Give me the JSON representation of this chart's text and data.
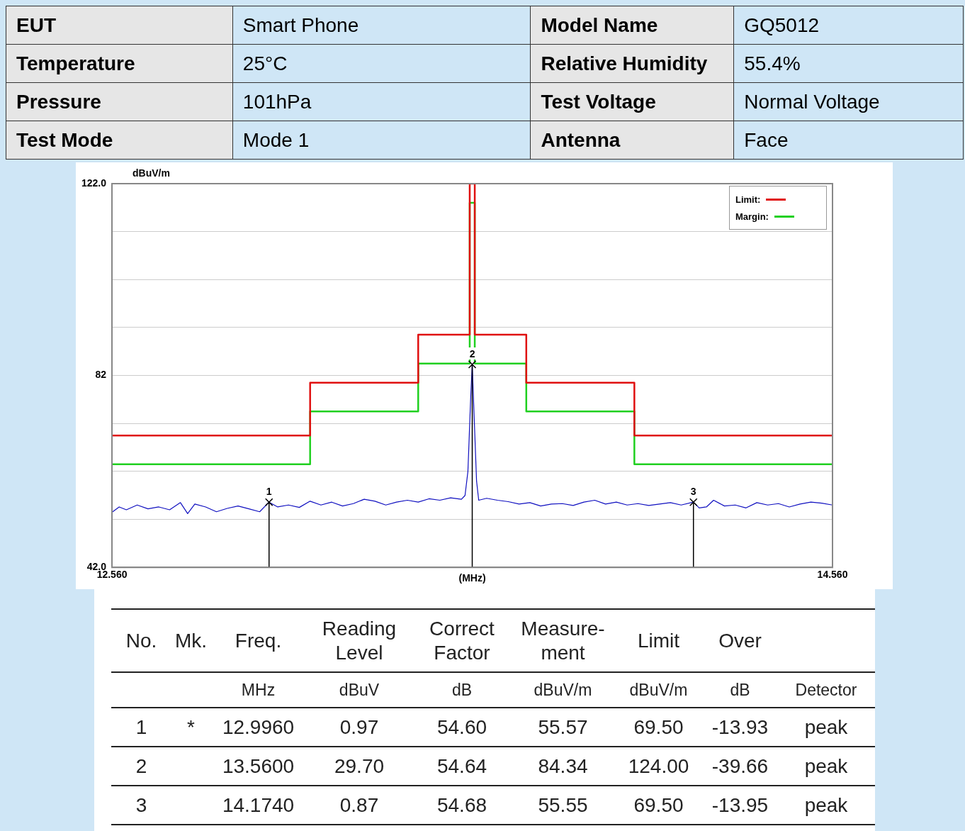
{
  "chart_data": [
    {
      "type": "other",
      "annotations": [
        "EUT",
        "Smart Phone",
        "Model Name",
        "GQ5012",
        "Temperature",
        "25°C",
        "Relative Humidity",
        "55.4%",
        "Pressure",
        "101hPa",
        "Test Voltage",
        "Normal Voltage",
        "Test Mode",
        "Mode 1",
        "Antenna",
        "Face"
      ]
    },
    {
      "type": "line",
      "ylabel": "dBuV/m",
      "xlabel": "(MHz)",
      "xlim": [
        12.56,
        14.56
      ],
      "xticks": [
        {
          "value": 12.56,
          "label": "12.560"
        },
        {
          "value": 14.56,
          "label": "14.560"
        }
      ],
      "ylim": [
        42,
        122
      ],
      "yticks": [
        {
          "value": 42,
          "label": "42.0"
        },
        {
          "value": 52,
          "label": null
        },
        {
          "value": 62,
          "label": null
        },
        {
          "value": 72,
          "label": null
        },
        82,
        {
          "value": 92,
          "label": null
        },
        {
          "value": 102,
          "label": null
        },
        {
          "value": 112,
          "label": null
        },
        {
          "value": 122,
          "label": "122.0"
        }
      ],
      "grid": "y",
      "legend": "top right",
      "marker": "none",
      "line_style": "solid",
      "series": [
        {
          "name": "Limit:",
          "color": "#e01010",
          "x": [
            12.56,
            13.11,
            13.11,
            13.41,
            13.41,
            13.553,
            13.553,
            13.567,
            13.567,
            13.71,
            13.71,
            14.01,
            14.01,
            14.56
          ],
          "values": [
            69.5,
            69.5,
            80.5,
            80.5,
            90.5,
            90.5,
            122,
            122,
            90.5,
            90.5,
            80.5,
            80.5,
            69.5,
            69.5
          ]
        },
        {
          "name": "Margin:",
          "color": "#20d020",
          "x": [
            12.56,
            13.11,
            13.11,
            13.41,
            13.41,
            13.553,
            13.553,
            13.567,
            13.567,
            13.71,
            13.71,
            14.01,
            14.01,
            14.56
          ],
          "values": [
            63.5,
            63.5,
            74.5,
            74.5,
            84.5,
            84.5,
            118,
            118,
            84.5,
            84.5,
            74.5,
            74.5,
            63.5,
            63.5
          ]
        },
        {
          "color": "#1010c0",
          "x": [
            12.56,
            12.58,
            12.6,
            12.63,
            12.66,
            12.69,
            12.72,
            12.75,
            12.77,
            12.79,
            12.82,
            12.85,
            12.88,
            12.91,
            12.94,
            12.97,
            12.996,
            13.02,
            13.05,
            13.08,
            13.11,
            13.14,
            13.17,
            13.2,
            13.23,
            13.26,
            13.29,
            13.32,
            13.35,
            13.38,
            13.41,
            13.44,
            13.47,
            13.5,
            13.53,
            13.54,
            13.548,
            13.552,
            13.556,
            13.56,
            13.564,
            13.568,
            13.572,
            13.578,
            13.6,
            13.63,
            13.66,
            13.69,
            13.72,
            13.75,
            13.78,
            13.81,
            13.84,
            13.87,
            13.9,
            13.93,
            13.96,
            13.99,
            14.02,
            14.05,
            14.08,
            14.11,
            14.14,
            14.174,
            14.19,
            14.21,
            14.23,
            14.26,
            14.29,
            14.32,
            14.35,
            14.38,
            14.41,
            14.44,
            14.47,
            14.5,
            14.53,
            14.56
          ],
          "values": [
            53.5,
            54.6,
            54,
            55,
            54.2,
            54.6,
            54,
            55.5,
            53.2,
            55.2,
            54.6,
            53.6,
            54.3,
            54.8,
            54.2,
            53.6,
            55.6,
            54.6,
            55,
            54.5,
            55.8,
            55,
            55.6,
            54.8,
            55.3,
            56.2,
            55.8,
            55,
            55.6,
            56,
            55.6,
            56.3,
            56,
            56.5,
            56.2,
            57,
            62,
            70,
            78,
            84.3,
            76,
            68,
            60,
            56,
            56.4,
            56,
            55.7,
            55.2,
            55.5,
            54.8,
            55.2,
            55.3,
            54.9,
            55.6,
            56,
            55.2,
            55.6,
            55,
            55.3,
            54.9,
            55.2,
            55.5,
            55,
            55.6,
            54.4,
            54.6,
            56,
            54.8,
            55,
            54.4,
            55.5,
            55,
            55.3,
            54.6,
            55.2,
            55.6,
            55.4,
            55
          ]
        }
      ],
      "annotations": [
        {
          "text": "1",
          "x": 12.996,
          "y": 55.6
        },
        {
          "text": "2",
          "x": 13.56,
          "y": 84.3
        },
        {
          "text": "3",
          "x": 14.174,
          "y": 55.6
        }
      ]
    },
    {
      "type": "other",
      "annotations": [
        "No.",
        "Mk.",
        "Freq.",
        "Reading Level",
        "Correct Factor",
        "Measure- ment",
        "Limit",
        "Over",
        null,
        null,
        null,
        "MHz",
        "dBuV",
        "dB",
        "dBuV/m",
        "dBuV/m",
        "dB",
        "Detector",
        "1",
        "*",
        "12.9960",
        "0.97",
        "54.60",
        "55.57",
        "69.50",
        "-13.93",
        "peak",
        "2",
        null,
        "13.5600",
        "29.70",
        "54.64",
        "84.34",
        "124.00",
        "-39.66",
        "peak",
        "3",
        null,
        "14.1740",
        "0.87",
        "54.68",
        "55.55",
        "69.50",
        "-13.95",
        "peak"
      ]
    }
  ]
}
